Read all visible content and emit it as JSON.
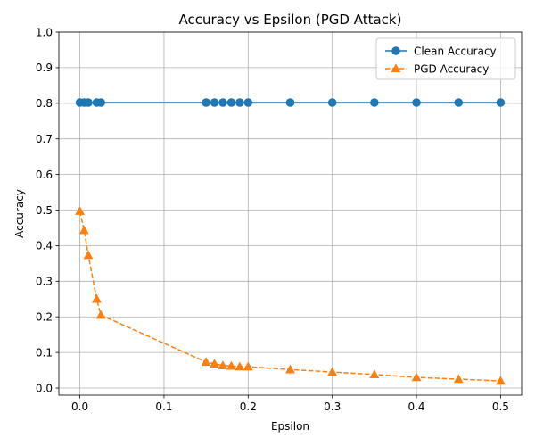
{
  "chart_data": {
    "type": "line",
    "title": "Accuracy vs Epsilon (PGD Attack)",
    "xlabel": "Epsilon",
    "ylabel": "Accuracy",
    "xlim": [
      -0.025,
      0.525
    ],
    "ylim": [
      -0.02,
      1.0
    ],
    "xticks": [
      0.0,
      0.1,
      0.2,
      0.3,
      0.4,
      0.5
    ],
    "xtick_labels": [
      "0.0",
      "0.1",
      "0.2",
      "0.3",
      "0.4",
      "0.5"
    ],
    "yticks": [
      0.0,
      0.1,
      0.2,
      0.3,
      0.4,
      0.5,
      0.6,
      0.7,
      0.8,
      0.9,
      1.0
    ],
    "ytick_labels": [
      "0.0",
      "0.1",
      "0.2",
      "0.3",
      "0.4",
      "0.5",
      "0.6",
      "0.7",
      "0.8",
      "0.9",
      "1.0"
    ],
    "grid": true,
    "legend_position": "top-right",
    "x": [
      0.0,
      0.005,
      0.01,
      0.02,
      0.025,
      0.15,
      0.16,
      0.17,
      0.18,
      0.19,
      0.2,
      0.25,
      0.3,
      0.35,
      0.4,
      0.45,
      0.5
    ],
    "series": [
      {
        "name": "Clean Accuracy",
        "values": [
          0.802,
          0.802,
          0.802,
          0.802,
          0.802,
          0.802,
          0.802,
          0.802,
          0.802,
          0.802,
          0.802,
          0.802,
          0.802,
          0.802,
          0.802,
          0.802,
          0.802
        ],
        "color": "#1f77b4",
        "line_style": "solid",
        "marker": "circle"
      },
      {
        "name": "PGD Accuracy",
        "values": [
          0.497,
          0.443,
          0.373,
          0.25,
          0.205,
          0.073,
          0.068,
          0.063,
          0.062,
          0.06,
          0.06,
          0.052,
          0.045,
          0.038,
          0.03,
          0.025,
          0.02
        ],
        "color": "#ff7f0e",
        "line_style": "dashed",
        "marker": "triangle"
      }
    ]
  }
}
